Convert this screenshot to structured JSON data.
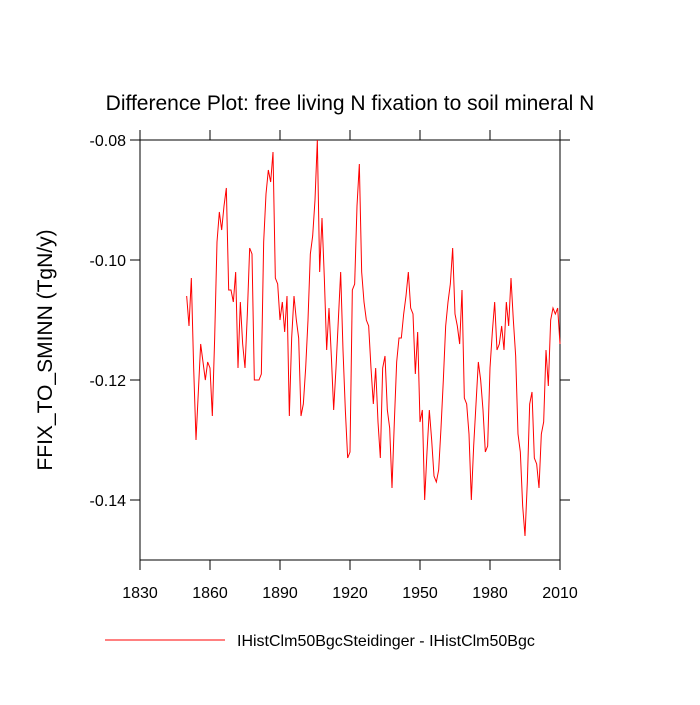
{
  "chart_data": {
    "type": "line",
    "title": "Difference Plot: free living N fixation to soil mineral N",
    "ylabel": "FFIX_TO_SMINN  (TgN/y)",
    "x": [
      1850,
      1851,
      1852,
      1853,
      1854,
      1855,
      1856,
      1857,
      1858,
      1859,
      1860,
      1861,
      1862,
      1863,
      1864,
      1865,
      1866,
      1867,
      1868,
      1869,
      1870,
      1871,
      1872,
      1873,
      1874,
      1875,
      1876,
      1877,
      1878,
      1879,
      1880,
      1881,
      1882,
      1883,
      1884,
      1885,
      1886,
      1887,
      1888,
      1889,
      1890,
      1891,
      1892,
      1893,
      1894,
      1895,
      1896,
      1897,
      1898,
      1899,
      1900,
      1901,
      1902,
      1903,
      1904,
      1905,
      1906,
      1907,
      1908,
      1909,
      1910,
      1911,
      1912,
      1913,
      1914,
      1915,
      1916,
      1917,
      1918,
      1919,
      1920,
      1921,
      1922,
      1923,
      1924,
      1925,
      1926,
      1927,
      1928,
      1929,
      1930,
      1931,
      1932,
      1933,
      1934,
      1935,
      1936,
      1937,
      1938,
      1939,
      1940,
      1941,
      1942,
      1943,
      1944,
      1945,
      1946,
      1947,
      1948,
      1949,
      1950,
      1951,
      1952,
      1953,
      1954,
      1955,
      1956,
      1957,
      1958,
      1959,
      1960,
      1961,
      1962,
      1963,
      1964,
      1965,
      1966,
      1967,
      1968,
      1969,
      1970,
      1971,
      1972,
      1973,
      1974,
      1975,
      1976,
      1977,
      1978,
      1979,
      1980,
      1981,
      1982,
      1983,
      1984,
      1985,
      1986,
      1987,
      1988,
      1989,
      1990,
      1991,
      1992,
      1993,
      1994,
      1995,
      1996,
      1997,
      1998,
      1999,
      2000,
      2001,
      2002,
      2003,
      2004,
      2005,
      2006,
      2007,
      2008,
      2009,
      2010
    ],
    "series": [
      {
        "name": "IHistClm50BgcSteidinger - IHistClm50Bgc",
        "color": "#ff0000",
        "values": [
          -0.106,
          -0.111,
          -0.103,
          -0.118,
          -0.13,
          -0.122,
          -0.114,
          -0.117,
          -0.12,
          -0.117,
          -0.118,
          -0.126,
          -0.113,
          -0.097,
          -0.092,
          -0.095,
          -0.091,
          -0.088,
          -0.105,
          -0.105,
          -0.107,
          -0.102,
          -0.118,
          -0.107,
          -0.114,
          -0.118,
          -0.109,
          -0.098,
          -0.099,
          -0.12,
          -0.12,
          -0.12,
          -0.119,
          -0.097,
          -0.089,
          -0.085,
          -0.087,
          -0.082,
          -0.103,
          -0.104,
          -0.11,
          -0.107,
          -0.112,
          -0.106,
          -0.126,
          -0.113,
          -0.106,
          -0.11,
          -0.113,
          -0.126,
          -0.124,
          -0.118,
          -0.11,
          -0.099,
          -0.096,
          -0.09,
          -0.08,
          -0.102,
          -0.093,
          -0.103,
          -0.115,
          -0.108,
          -0.116,
          -0.125,
          -0.118,
          -0.11,
          -0.102,
          -0.115,
          -0.125,
          -0.133,
          -0.132,
          -0.105,
          -0.104,
          -0.091,
          -0.084,
          -0.102,
          -0.107,
          -0.11,
          -0.111,
          -0.118,
          -0.124,
          -0.118,
          -0.127,
          -0.133,
          -0.118,
          -0.116,
          -0.125,
          -0.128,
          -0.138,
          -0.127,
          -0.117,
          -0.113,
          -0.113,
          -0.109,
          -0.106,
          -0.102,
          -0.108,
          -0.109,
          -0.119,
          -0.112,
          -0.127,
          -0.125,
          -0.14,
          -0.132,
          -0.125,
          -0.13,
          -0.136,
          -0.137,
          -0.135,
          -0.128,
          -0.12,
          -0.111,
          -0.107,
          -0.104,
          -0.098,
          -0.109,
          -0.111,
          -0.114,
          -0.105,
          -0.123,
          -0.124,
          -0.129,
          -0.14,
          -0.131,
          -0.124,
          -0.117,
          -0.12,
          -0.125,
          -0.132,
          -0.131,
          -0.118,
          -0.112,
          -0.107,
          -0.115,
          -0.114,
          -0.111,
          -0.115,
          -0.107,
          -0.111,
          -0.103,
          -0.11,
          -0.116,
          -0.129,
          -0.132,
          -0.141,
          -0.146,
          -0.137,
          -0.124,
          -0.122,
          -0.133,
          -0.134,
          -0.138,
          -0.129,
          -0.127,
          -0.115,
          -0.121,
          -0.11,
          -0.108,
          -0.109,
          -0.108,
          -0.114
        ]
      }
    ],
    "xlim": [
      1830,
      2010
    ],
    "ylim": [
      -0.15,
      -0.08
    ],
    "xticks": [
      1830,
      1860,
      1890,
      1920,
      1950,
      1980,
      2010
    ],
    "yticks": [
      -0.14,
      -0.12,
      {
        "value": -0.1,
        "label": "-0.10"
      },
      -0.08
    ]
  }
}
